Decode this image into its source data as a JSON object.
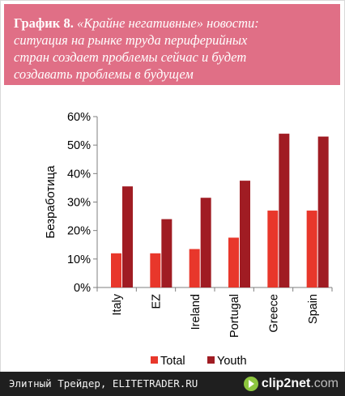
{
  "header": {
    "label": "График 8.",
    "text_line1": "«Крайне негативные» новости:",
    "text_line2": "ситуация на рынке труда периферийных",
    "text_line3": "стран создает проблемы сейчас и будет",
    "text_line4": "создавать проблемы в будущем"
  },
  "colors": {
    "header_bg": "#e06f86",
    "total": "#e8372b",
    "youth": "#a01c23",
    "footer_bg": "#1f1f1f"
  },
  "chart_data": {
    "type": "bar",
    "categories": [
      "Italy",
      "EZ",
      "Ireland",
      "Portugal",
      "Greece",
      "Spain"
    ],
    "series": [
      {
        "name": "Total",
        "values": [
          12,
          12,
          13.5,
          17.5,
          27,
          27
        ]
      },
      {
        "name": "Youth",
        "values": [
          35.5,
          24,
          31.5,
          37.5,
          54,
          53
        ]
      }
    ],
    "title": "",
    "xlabel": "",
    "ylabel": "Безработица",
    "ylim": [
      0,
      60
    ],
    "yticks": [
      0,
      10,
      20,
      30,
      40,
      50,
      60
    ],
    "ytick_labels": [
      "0%",
      "10%",
      "20%",
      "30%",
      "40%",
      "50%",
      "60%"
    ],
    "grid": false,
    "legend_position": "bottom"
  },
  "footer": {
    "text": "Элитный Трейдер, ELITETRADER.RU",
    "logo_text_a": "clip2",
    "logo_text_b": "net",
    "logo_text_c": ".com"
  }
}
